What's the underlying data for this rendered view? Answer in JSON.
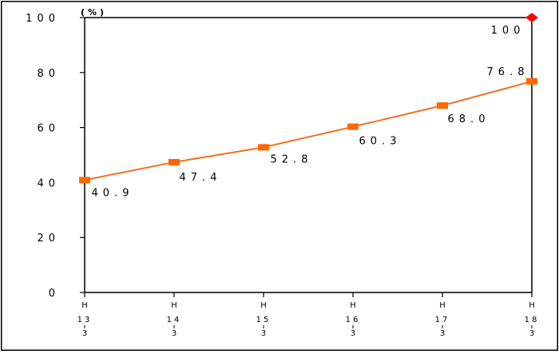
{
  "chart_data": {
    "type": "line",
    "unit_label": "(%)",
    "x": [
      {
        "era": "H",
        "year": "13",
        "month": "3"
      },
      {
        "era": "H",
        "year": "14",
        "month": "3"
      },
      {
        "era": "H",
        "year": "15",
        "month": "3"
      },
      {
        "era": "H",
        "year": "16",
        "month": "3"
      },
      {
        "era": "H",
        "year": "17",
        "month": "3"
      },
      {
        "era": "H",
        "year": "18",
        "month": "3"
      }
    ],
    "series": [
      {
        "values": [
          40.9,
          47.4,
          52.8,
          60.3,
          68.0,
          76.8
        ],
        "labels": [
          "40.9",
          "47.4",
          "52.8",
          "60.3",
          "68.0",
          "76.8"
        ],
        "color": "#f07020",
        "marker": "square",
        "marker_color": "#ff6600"
      }
    ],
    "target": {
      "x_index": 5,
      "value": 100,
      "label": "100",
      "marker": "diamond",
      "color": "#ff0000"
    },
    "y_ticks": [
      "100",
      "80",
      "60",
      "40",
      "20",
      "0"
    ],
    "y_tick_values": [
      100,
      80,
      60,
      40,
      20,
      0
    ],
    "ylim": [
      0,
      100
    ],
    "grid": false,
    "legend": "none",
    "title": "",
    "xlabel": "",
    "ylabel": ""
  }
}
